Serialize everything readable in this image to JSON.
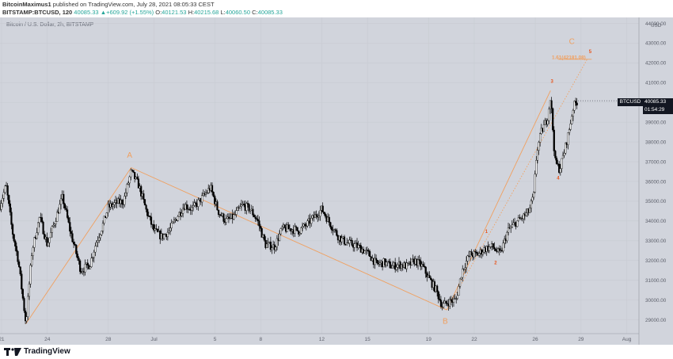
{
  "header": {
    "author": "BitcoinMaximus1",
    "publish_text": "published on TradingView.com, July 28, 2021 08:05:33 CEST",
    "symbol": "BITSTAMP:BTCUSD, 120",
    "last": "40085.33",
    "change": "▲+609.92 (+1.55%)",
    "open_label": "O:",
    "open": "40121.53",
    "high_label": "H:",
    "high": "40215.68",
    "low_label": "L:",
    "low": "40060.50",
    "close_label": "C:",
    "close": "40085.33"
  },
  "chart_title": "Bitcoin / U.S. Dollar, 2h, BITSTAMP",
  "price_label": {
    "symbol": "BTCUSD",
    "price": "40085.33",
    "countdown": "01:54:29"
  },
  "footer": {
    "brand": "TradingView"
  },
  "colors": {
    "background": "#d1d4dc",
    "candle": "#000000",
    "wave": "#f0a060",
    "annotation": "#e8541c"
  },
  "chart_data": {
    "type": "candlestick",
    "y_axis": {
      "unit": "USD",
      "range": [
        28300,
        44300
      ],
      "ticks": [
        29000,
        30000,
        31000,
        32000,
        33000,
        34000,
        35000,
        36000,
        37000,
        38000,
        39000,
        40000,
        41000,
        42000,
        43000,
        44000
      ],
      "tick_labels": [
        "29000.00",
        "30000.00",
        "31000.00",
        "32000.00",
        "33000.00",
        "34000.00",
        "35000.00",
        "36000.00",
        "37000.00",
        "38000.00",
        "39000.00",
        "40000.00",
        "41000.00",
        "42000.00",
        "43000.00",
        "44000.00"
      ]
    },
    "x_axis": {
      "ticks": [
        {
          "day": 21,
          "label": "21"
        },
        {
          "day": 24,
          "label": "24"
        },
        {
          "day": 28,
          "label": "28"
        },
        {
          "day": 31,
          "label": "Jul"
        },
        {
          "day": 35,
          "label": "5"
        },
        {
          "day": 38,
          "label": "8"
        },
        {
          "day": 42,
          "label": "12"
        },
        {
          "day": 45,
          "label": "15"
        },
        {
          "day": 49,
          "label": "19"
        },
        {
          "day": 52,
          "label": "22"
        },
        {
          "day": 56,
          "label": "26"
        },
        {
          "day": 59,
          "label": "29"
        },
        {
          "day": 62,
          "label": "Aug"
        }
      ],
      "range_days": [
        20.9,
        62.8
      ]
    },
    "price_path": [
      {
        "day": 20.9,
        "price": 34800
      },
      {
        "day": 21.3,
        "price": 35800
      },
      {
        "day": 21.7,
        "price": 33500
      },
      {
        "day": 22.1,
        "price": 32000
      },
      {
        "day": 22.6,
        "price": 28800
      },
      {
        "day": 23.0,
        "price": 32500
      },
      {
        "day": 23.5,
        "price": 34200
      },
      {
        "day": 24.0,
        "price": 32800
      },
      {
        "day": 24.5,
        "price": 34000
      },
      {
        "day": 25.0,
        "price": 35200
      },
      {
        "day": 25.5,
        "price": 33500
      },
      {
        "day": 26.2,
        "price": 31500
      },
      {
        "day": 26.8,
        "price": 31800
      },
      {
        "day": 27.2,
        "price": 32900
      },
      {
        "day": 27.6,
        "price": 33700
      },
      {
        "day": 28.0,
        "price": 34700
      },
      {
        "day": 28.5,
        "price": 34900
      },
      {
        "day": 29.0,
        "price": 35000
      },
      {
        "day": 29.5,
        "price": 36500
      },
      {
        "day": 30.0,
        "price": 35800
      },
      {
        "day": 30.5,
        "price": 34500
      },
      {
        "day": 31.0,
        "price": 33500
      },
      {
        "day": 31.5,
        "price": 33200
      },
      {
        "day": 32.0,
        "price": 33500
      },
      {
        "day": 32.5,
        "price": 34200
      },
      {
        "day": 33.0,
        "price": 34800
      },
      {
        "day": 33.5,
        "price": 34600
      },
      {
        "day": 34.2,
        "price": 35200
      },
      {
        "day": 34.7,
        "price": 35700
      },
      {
        "day": 35.2,
        "price": 34500
      },
      {
        "day": 35.7,
        "price": 34000
      },
      {
        "day": 36.2,
        "price": 34200
      },
      {
        "day": 36.8,
        "price": 34800
      },
      {
        "day": 37.3,
        "price": 34600
      },
      {
        "day": 37.8,
        "price": 34000
      },
      {
        "day": 38.3,
        "price": 32800
      },
      {
        "day": 38.9,
        "price": 32700
      },
      {
        "day": 39.4,
        "price": 33600
      },
      {
        "day": 40.0,
        "price": 33600
      },
      {
        "day": 40.5,
        "price": 33500
      },
      {
        "day": 41.0,
        "price": 33800
      },
      {
        "day": 41.5,
        "price": 34200
      },
      {
        "day": 42.0,
        "price": 34600
      },
      {
        "day": 42.6,
        "price": 33800
      },
      {
        "day": 43.1,
        "price": 33200
      },
      {
        "day": 43.6,
        "price": 32900
      },
      {
        "day": 44.1,
        "price": 32800
      },
      {
        "day": 44.6,
        "price": 32600
      },
      {
        "day": 45.1,
        "price": 32300
      },
      {
        "day": 45.6,
        "price": 31800
      },
      {
        "day": 46.1,
        "price": 31900
      },
      {
        "day": 46.6,
        "price": 31700
      },
      {
        "day": 47.1,
        "price": 31800
      },
      {
        "day": 47.6,
        "price": 31700
      },
      {
        "day": 48.1,
        "price": 32000
      },
      {
        "day": 48.6,
        "price": 31700
      },
      {
        "day": 49.1,
        "price": 31000
      },
      {
        "day": 49.5,
        "price": 30500
      },
      {
        "day": 49.9,
        "price": 29700
      },
      {
        "day": 50.3,
        "price": 29900
      },
      {
        "day": 50.8,
        "price": 30000
      },
      {
        "day": 51.2,
        "price": 31500
      },
      {
        "day": 51.7,
        "price": 32300
      },
      {
        "day": 52.2,
        "price": 32300
      },
      {
        "day": 52.7,
        "price": 32600
      },
      {
        "day": 53.2,
        "price": 32700
      },
      {
        "day": 53.7,
        "price": 32300
      },
      {
        "day": 54.2,
        "price": 33500
      },
      {
        "day": 54.7,
        "price": 33900
      },
      {
        "day": 55.2,
        "price": 34200
      },
      {
        "day": 55.6,
        "price": 34500
      },
      {
        "day": 55.9,
        "price": 35300
      },
      {
        "day": 56.1,
        "price": 37500
      },
      {
        "day": 56.4,
        "price": 38500
      },
      {
        "day": 56.8,
        "price": 39200
      },
      {
        "day": 57.0,
        "price": 40300
      },
      {
        "day": 57.3,
        "price": 37000
      },
      {
        "day": 57.6,
        "price": 36600
      },
      {
        "day": 57.9,
        "price": 37500
      },
      {
        "day": 58.2,
        "price": 38500
      },
      {
        "day": 58.5,
        "price": 39800
      },
      {
        "day": 58.8,
        "price": 40100
      }
    ],
    "wave_lines": [
      {
        "from": {
          "day": 22.6,
          "price": 28800
        },
        "to": {
          "day": 29.5,
          "price": 36700
        },
        "style": "solid"
      },
      {
        "from": {
          "day": 29.5,
          "price": 36700
        },
        "to": {
          "day": 50.2,
          "price": 29500
        },
        "style": "solid"
      },
      {
        "from": {
          "day": 50.2,
          "price": 29500
        },
        "to": {
          "day": 57.0,
          "price": 40600
        },
        "style": "solid"
      },
      {
        "from": {
          "day": 50.2,
          "price": 29500
        },
        "to": {
          "day": 59.4,
          "price": 42181
        },
        "style": "dotted"
      },
      {
        "from": {
          "day": 57.5,
          "price": 42181
        },
        "to": {
          "day": 59.7,
          "price": 42181
        },
        "style": "solid"
      }
    ],
    "annotations": [
      {
        "label": "A",
        "day": 29.4,
        "price": 37200,
        "size": "large"
      },
      {
        "label": "B",
        "day": 50.1,
        "price": 28800,
        "size": "large"
      },
      {
        "label": "C",
        "day": 58.4,
        "price": 42950,
        "size": "large"
      },
      {
        "label": "1.61(42181.08)",
        "day": 58.2,
        "price": 42200,
        "size": "small"
      },
      {
        "label": "1",
        "day": 52.8,
        "price": 33400,
        "size": "tiny"
      },
      {
        "label": "2",
        "day": 53.4,
        "price": 31800,
        "size": "tiny"
      },
      {
        "label": "3",
        "day": 57.1,
        "price": 41000,
        "size": "tiny"
      },
      {
        "label": "4",
        "day": 57.5,
        "price": 36100,
        "size": "tiny"
      },
      {
        "label": "5",
        "day": 59.6,
        "price": 42500,
        "size": "tiny"
      }
    ]
  }
}
